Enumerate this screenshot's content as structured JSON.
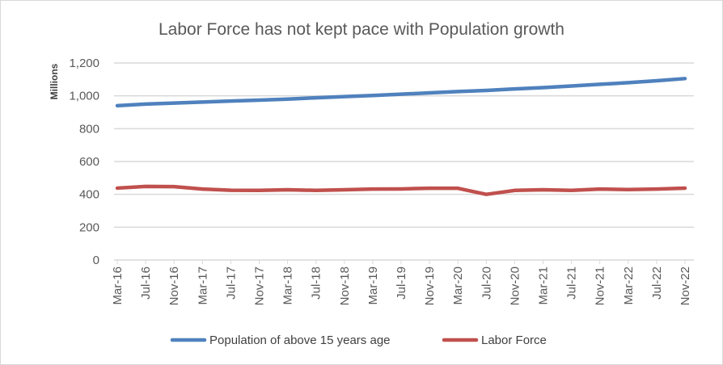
{
  "chart_data": {
    "type": "line",
    "title": "Labor Force has not kept pace with Population growth",
    "xlabel": "",
    "ylabel": "Millions",
    "ylim": [
      0,
      1200
    ],
    "yticks": [
      "0",
      "200",
      "400",
      "600",
      "800",
      "1,000",
      "1,200"
    ],
    "ytick_values": [
      0,
      200,
      400,
      600,
      800,
      1000,
      1200
    ],
    "grid": true,
    "legend_position": "bottom",
    "categories": [
      "Mar-16",
      "Jul-16",
      "Nov-16",
      "Mar-17",
      "Jul-17",
      "Nov-17",
      "Mar-18",
      "Jul-18",
      "Nov-18",
      "Mar-19",
      "Jul-19",
      "Nov-19",
      "Mar-20",
      "Jul-20",
      "Nov-20",
      "Mar-21",
      "Jul-21",
      "Nov-21",
      "Mar-22",
      "Jul-22",
      "Nov-22"
    ],
    "series": [
      {
        "name": "Population of above 15 years age",
        "color": "#4f81bd",
        "values": [
          940,
          950,
          956,
          962,
          968,
          974,
          980,
          988,
          995,
          1002,
          1010,
          1018,
          1026,
          1033,
          1042,
          1050,
          1060,
          1070,
          1080,
          1092,
          1105
        ]
      },
      {
        "name": "Labor Force",
        "color": "#c0504d",
        "values": [
          438,
          448,
          447,
          432,
          425,
          424,
          428,
          424,
          428,
          432,
          433,
          437,
          437,
          400,
          424,
          428,
          424,
          432,
          429,
          432,
          438
        ]
      }
    ]
  }
}
